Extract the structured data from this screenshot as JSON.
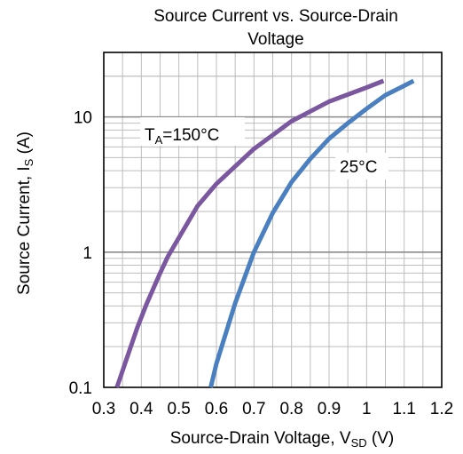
{
  "chart_data": {
    "type": "line",
    "title_line1": "Source Current vs. Source-Drain",
    "title_line2": "Voltage",
    "xlabel": "Source-Drain Voltage, V",
    "xlabel_sub": "SD",
    "xlabel_unit": " (V)",
    "ylabel": "Source Current, I",
    "ylabel_sub": "S",
    "ylabel_unit": " (A)",
    "xlim": [
      0.3,
      1.2
    ],
    "ylim": [
      0.1,
      30
    ],
    "yscale": "log",
    "grid": true,
    "x_ticks": [
      "0.3",
      "0.4",
      "0.5",
      "0.6",
      "0.7",
      "0.8",
      "0.9",
      "1",
      "1.1",
      "1.2"
    ],
    "x_tick_values": [
      0.3,
      0.4,
      0.5,
      0.6,
      0.7,
      0.8,
      0.9,
      1.0,
      1.1,
      1.2
    ],
    "y_ticks": [
      "0.1",
      "1",
      "10"
    ],
    "y_tick_values": [
      0.1,
      1,
      10
    ],
    "series": [
      {
        "label_main": "T",
        "label_sub": "A",
        "label_rest": "=150°C",
        "color": "#7b57a0",
        "x": [
          0.335,
          0.36,
          0.39,
          0.415,
          0.45,
          0.47,
          0.5,
          0.55,
          0.6,
          0.7,
          0.8,
          0.9,
          1.0,
          1.045
        ],
        "y": [
          0.1,
          0.16,
          0.28,
          0.42,
          0.7,
          0.92,
          1.28,
          2.2,
          3.2,
          5.8,
          9.3,
          13.0,
          16.5,
          18.5
        ]
      },
      {
        "label_main": "25°C",
        "color": "#4a7fc0",
        "x": [
          0.585,
          0.6,
          0.65,
          0.7,
          0.75,
          0.8,
          0.85,
          0.9,
          0.95,
          1.0,
          1.05,
          1.1,
          1.125
        ],
        "y": [
          0.1,
          0.15,
          0.42,
          1.0,
          1.95,
          3.3,
          4.9,
          6.9,
          9.0,
          11.5,
          14.5,
          17.0,
          18.5
        ]
      }
    ]
  }
}
